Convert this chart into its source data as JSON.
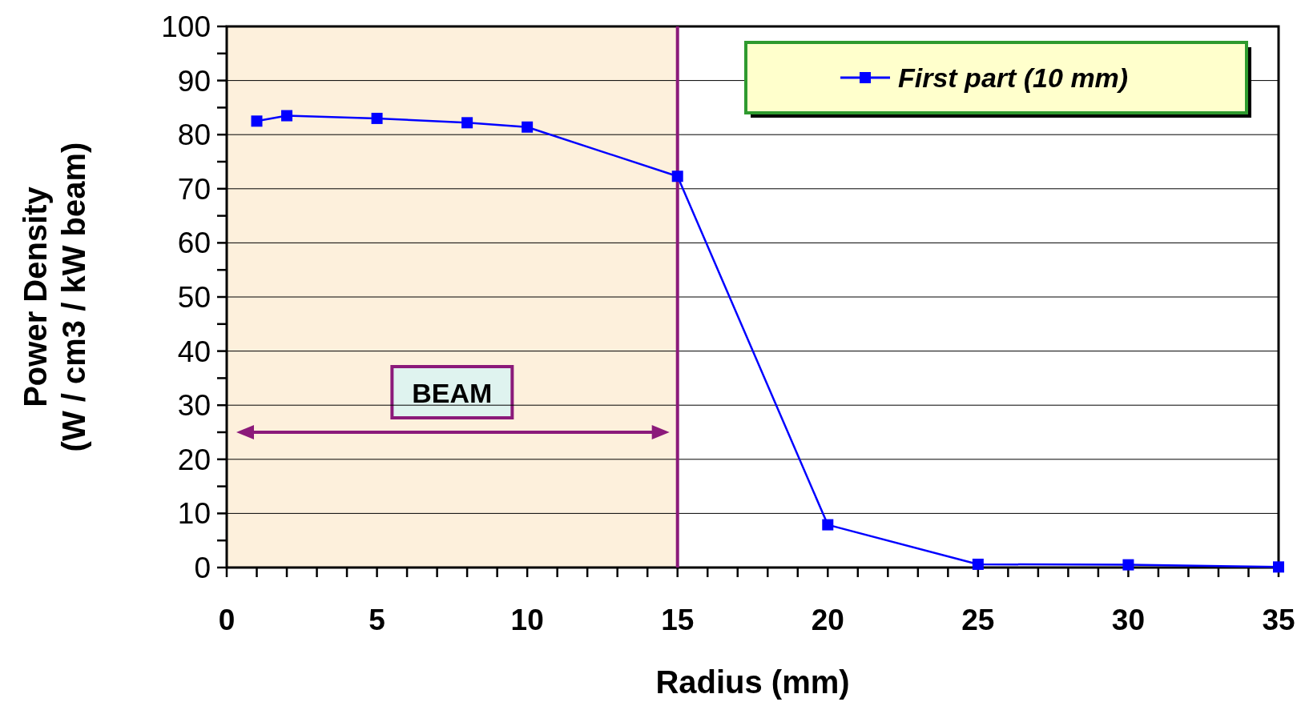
{
  "chart_data": {
    "type": "line",
    "xlabel": "Radius  (mm)",
    "ylabel": "Power  Density\n(W / cm3 / kW beam)",
    "x": [
      1,
      2,
      5,
      8,
      10,
      15,
      20,
      25,
      30,
      35
    ],
    "series": [
      {
        "name": "First part (10 mm)",
        "color": "#0000ff",
        "values": [
          82.5,
          83.5,
          83,
          82.2,
          81.4,
          72.3,
          7.9,
          0.6,
          0.5,
          0.1
        ]
      }
    ],
    "xlim": [
      0,
      35
    ],
    "xticks": [
      0,
      {
        "value": 1,
        "label": null
      },
      {
        "value": 2,
        "label": null
      },
      {
        "value": 3,
        "label": null
      },
      {
        "value": 4,
        "label": null
      },
      5,
      {
        "value": 6,
        "label": null
      },
      {
        "value": 7,
        "label": null
      },
      {
        "value": 8,
        "label": null
      },
      {
        "value": 9,
        "label": null
      },
      10,
      {
        "value": 11,
        "label": null
      },
      {
        "value": 12,
        "label": null
      },
      {
        "value": 13,
        "label": null
      },
      {
        "value": 14,
        "label": null
      },
      15,
      {
        "value": 16,
        "label": null
      },
      {
        "value": 17,
        "label": null
      },
      {
        "value": 18,
        "label": null
      },
      {
        "value": 19,
        "label": null
      },
      20,
      {
        "value": 21,
        "label": null
      },
      {
        "value": 22,
        "label": null
      },
      {
        "value": 23,
        "label": null
      },
      {
        "value": 24,
        "label": null
      },
      25,
      {
        "value": 26,
        "label": null
      },
      {
        "value": 27,
        "label": null
      },
      {
        "value": 28,
        "label": null
      },
      {
        "value": 29,
        "label": null
      },
      30,
      {
        "value": 31,
        "label": null
      },
      {
        "value": 32,
        "label": null
      },
      {
        "value": 33,
        "label": null
      },
      {
        "value": 34,
        "label": null
      },
      35
    ],
    "ylim": [
      0,
      100
    ],
    "yticks": [
      0,
      {
        "value": 5,
        "label": null
      },
      10,
      {
        "value": 15,
        "label": null
      },
      20,
      {
        "value": 25,
        "label": null
      },
      30,
      {
        "value": 35,
        "label": null
      },
      40,
      {
        "value": 45,
        "label": null
      },
      50,
      {
        "value": 55,
        "label": null
      },
      60,
      {
        "value": 65,
        "label": null
      },
      70,
      {
        "value": 75,
        "label": null
      },
      80,
      {
        "value": 85,
        "label": null
      },
      90,
      {
        "value": 95,
        "label": null
      },
      100
    ],
    "grid": "y",
    "legend": "top right",
    "marker": "square",
    "line_style": "solid",
    "bands": [
      {
        "axis": "x",
        "from": 0,
        "to": 15,
        "label": "BEAM",
        "color": "#fdf0dc"
      }
    ],
    "ref_lines": [
      {
        "axis": "x",
        "value": 15,
        "color": "#8b1a7a"
      }
    ]
  }
}
